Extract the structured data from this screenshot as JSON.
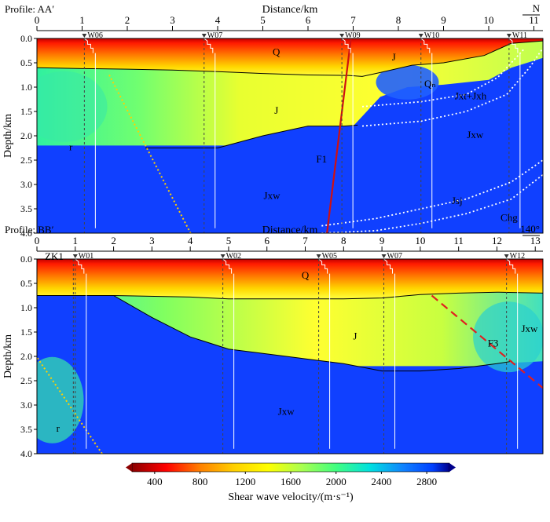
{
  "colorbar": {
    "label": "Shear wave velocity/(m·s⁻¹)",
    "ticks": [
      "400",
      "800",
      "1200",
      "1600",
      "2000",
      "2400",
      "2800"
    ],
    "min": 200,
    "max": 3000,
    "stops": [
      {
        "v": 200,
        "c": "#8b0000"
      },
      {
        "v": 500,
        "c": "#ff0000"
      },
      {
        "v": 800,
        "c": "#ff8000"
      },
      {
        "v": 1100,
        "c": "#ffd000"
      },
      {
        "v": 1400,
        "c": "#ffff00"
      },
      {
        "v": 1700,
        "c": "#a8ff50"
      },
      {
        "v": 2000,
        "c": "#40ff80"
      },
      {
        "v": 2300,
        "c": "#00e0e0"
      },
      {
        "v": 2600,
        "c": "#1080ff"
      },
      {
        "v": 2850,
        "c": "#0040ff"
      },
      {
        "v": 3000,
        "c": "#00008b"
      }
    ]
  },
  "colors": {
    "q": "#ff2a00",
    "j": "#ffff30",
    "jside": "#60ff80",
    "jxw": "#1040ff",
    "r": "#38e8a8"
  },
  "chart_data": [
    {
      "type": "heatmap",
      "title": "Profile: AA′",
      "xlabel": "Distance/km",
      "ylabel": "Depth/km",
      "xlim": [
        0,
        11.2
      ],
      "ylim": [
        0,
        4.0
      ],
      "xticks": [
        "0",
        "1",
        "2",
        "3",
        "4",
        "5",
        "6",
        "7",
        "8",
        "9",
        "10",
        "11"
      ],
      "yticks": [
        "0.0",
        "0.5",
        "1.0",
        "1.5",
        "2.0",
        "2.5",
        "3.0",
        "3.5",
        "4.0"
      ],
      "corner": "N",
      "wells": [
        {
          "name": "W06",
          "x": 1.05
        },
        {
          "name": "W07",
          "x": 3.7
        },
        {
          "name": "W09",
          "x": 6.75
        },
        {
          "name": "W10",
          "x": 8.5
        },
        {
          "name": "W11",
          "x": 10.45
        }
      ],
      "q_base": [
        [
          0,
          0.6
        ],
        [
          1,
          0.62
        ],
        [
          2,
          0.63
        ],
        [
          3,
          0.65
        ],
        [
          4,
          0.68
        ],
        [
          5,
          0.72
        ],
        [
          6,
          0.75
        ],
        [
          6.9,
          0.76
        ],
        [
          7.2,
          0.78
        ],
        [
          7.6,
          0.7
        ],
        [
          8.3,
          0.55
        ],
        [
          9,
          0.5
        ],
        [
          9.9,
          0.35
        ],
        [
          10.5,
          0.1
        ],
        [
          11.2,
          0.05
        ]
      ],
      "j_base": [
        [
          2.4,
          2.25
        ],
        [
          4,
          2.25
        ],
        [
          5,
          2.0
        ],
        [
          6,
          1.8
        ],
        [
          6.8,
          1.8
        ],
        [
          7.1,
          1.78
        ]
      ],
      "lower_block": [
        [
          0,
          2.3
        ],
        [
          2.4,
          2.25
        ],
        [
          4,
          2.25
        ],
        [
          5,
          2.0
        ],
        [
          6,
          1.8
        ],
        [
          7,
          1.8
        ],
        [
          7.2,
          1.6
        ],
        [
          7.6,
          1.2
        ],
        [
          8.2,
          1.0
        ],
        [
          9,
          0.95
        ],
        [
          10,
          0.85
        ],
        [
          10.5,
          0.6
        ],
        [
          11.2,
          0.4
        ],
        [
          11.2,
          4
        ],
        [
          0,
          4
        ]
      ],
      "faults": [
        {
          "label": "F1",
          "style": "solid",
          "color": "#d01010",
          "x0": 6.42,
          "y0": 4.0,
          "x1": 6.95,
          "y1": 0.0
        },
        {
          "label": "",
          "style": "dotted",
          "color": "#ffd000",
          "x0": 1.6,
          "y0": 0.75,
          "x1": 3.4,
          "y1": 4.0
        }
      ],
      "dotted_white": [
        [
          [
            7.2,
            1.4
          ],
          [
            8.5,
            1.3
          ],
          [
            9.5,
            1.15
          ],
          [
            10.2,
            0.8
          ],
          [
            10.6,
            0.4
          ],
          [
            10.8,
            0.2
          ]
        ],
        [
          [
            7.2,
            1.8
          ],
          [
            8.5,
            1.7
          ],
          [
            9.5,
            1.5
          ],
          [
            10.4,
            1.15
          ],
          [
            10.9,
            0.6
          ],
          [
            11.2,
            0.2
          ]
        ],
        [
          [
            6.3,
            3.85
          ],
          [
            7.5,
            3.7
          ],
          [
            8.5,
            3.5
          ],
          [
            9.5,
            3.3
          ],
          [
            10.5,
            2.95
          ],
          [
            11.2,
            2.5
          ]
        ],
        [
          [
            6.3,
            4.0
          ],
          [
            7.5,
            3.95
          ],
          [
            8.5,
            3.8
          ],
          [
            9.5,
            3.6
          ],
          [
            10.5,
            3.3
          ],
          [
            11.2,
            2.8
          ]
        ]
      ],
      "labels": [
        {
          "text": "Q",
          "x": 5.3,
          "y": 0.35
        },
        {
          "text": "J",
          "x": 7.9,
          "y": 0.45
        },
        {
          "text": "Qₙ",
          "x": 8.7,
          "y": 1.0
        },
        {
          "text": "J",
          "x": 5.3,
          "y": 1.55
        },
        {
          "text": "Jxt+Jxh",
          "x": 9.6,
          "y": 1.25
        },
        {
          "text": "Jxw",
          "x": 9.7,
          "y": 2.05
        },
        {
          "text": "r",
          "x": 0.75,
          "y": 2.3
        },
        {
          "text": "F1",
          "x": 6.3,
          "y": 2.55
        },
        {
          "text": "Jxw",
          "x": 5.2,
          "y": 3.3
        },
        {
          "text": "Jsj",
          "x": 9.3,
          "y": 3.4
        },
        {
          "text": "Chg",
          "x": 10.45,
          "y": 3.75
        }
      ]
    },
    {
      "type": "heatmap",
      "title": "Profile: BB′",
      "xlabel": "Distance/km",
      "ylabel": "Depth/km",
      "xlim": [
        0,
        13.2
      ],
      "ylim": [
        0,
        4.0
      ],
      "xticks": [
        "0",
        "1",
        "2",
        "3",
        "4",
        "5",
        "6",
        "7",
        "8",
        "9",
        "10",
        "11",
        "12",
        "13"
      ],
      "yticks": [
        "0.0",
        "0.5",
        "1.0",
        "1.5",
        "2.0",
        "2.5",
        "3.0",
        "3.5",
        "4.0"
      ],
      "corner": "140°",
      "wells": [
        {
          "name": "W01",
          "x": 1.0
        },
        {
          "name": "W02",
          "x": 4.85
        },
        {
          "name": "W05",
          "x": 7.35
        },
        {
          "name": "W07",
          "x": 9.05
        },
        {
          "name": "W12",
          "x": 12.25
        }
      ],
      "zk": {
        "name": "ZK1",
        "x": 0.95
      },
      "q_base": [
        [
          0,
          0.75
        ],
        [
          2,
          0.75
        ],
        [
          4,
          0.78
        ],
        [
          5,
          0.82
        ],
        [
          6,
          0.82
        ],
        [
          8,
          0.82
        ],
        [
          9,
          0.8
        ],
        [
          10,
          0.73
        ],
        [
          11,
          0.7
        ],
        [
          12,
          0.68
        ],
        [
          13.2,
          0.7
        ]
      ],
      "j_base": [
        [
          2.0,
          0.75
        ],
        [
          3,
          1.2
        ],
        [
          4,
          1.6
        ],
        [
          5,
          1.85
        ],
        [
          6,
          1.95
        ],
        [
          7,
          2.05
        ],
        [
          8,
          2.15
        ],
        [
          9,
          2.3
        ],
        [
          10,
          2.3
        ],
        [
          11,
          2.25
        ],
        [
          12,
          2.15
        ],
        [
          12.4,
          2.1
        ]
      ],
      "lower_block": [
        [
          0,
          0.75
        ],
        [
          2,
          0.75
        ],
        [
          3,
          1.2
        ],
        [
          4,
          1.6
        ],
        [
          5,
          1.85
        ],
        [
          6,
          1.95
        ],
        [
          7,
          2.05
        ],
        [
          8,
          2.15
        ],
        [
          9,
          2.3
        ],
        [
          10,
          2.3
        ],
        [
          11,
          2.25
        ],
        [
          12,
          2.15
        ],
        [
          13.2,
          2.1
        ],
        [
          13.2,
          4
        ],
        [
          0,
          4
        ]
      ],
      "faults": [
        {
          "label": "F3",
          "style": "dashed",
          "color": "#e02020",
          "x0": 10.3,
          "y0": 0.75,
          "x1": 13.2,
          "y1": 2.65
        },
        {
          "label": "",
          "style": "dotted",
          "color": "#ffd000",
          "x0": -0.1,
          "y0": 1.9,
          "x1": 1.7,
          "y1": 4.0
        }
      ],
      "dotted_white": [],
      "labels": [
        {
          "text": "Q",
          "x": 7.0,
          "y": 0.4
        },
        {
          "text": "J",
          "x": 8.3,
          "y": 1.65
        },
        {
          "text": "F3",
          "x": 11.9,
          "y": 1.8
        },
        {
          "text": "Jxw",
          "x": 12.85,
          "y": 1.5
        },
        {
          "text": "Jxw",
          "x": 6.5,
          "y": 3.2
        },
        {
          "text": "r",
          "x": 0.55,
          "y": 3.55
        },
        {
          "text": "ZK1",
          "x": 0.45,
          "y": 0.02
        }
      ]
    }
  ]
}
